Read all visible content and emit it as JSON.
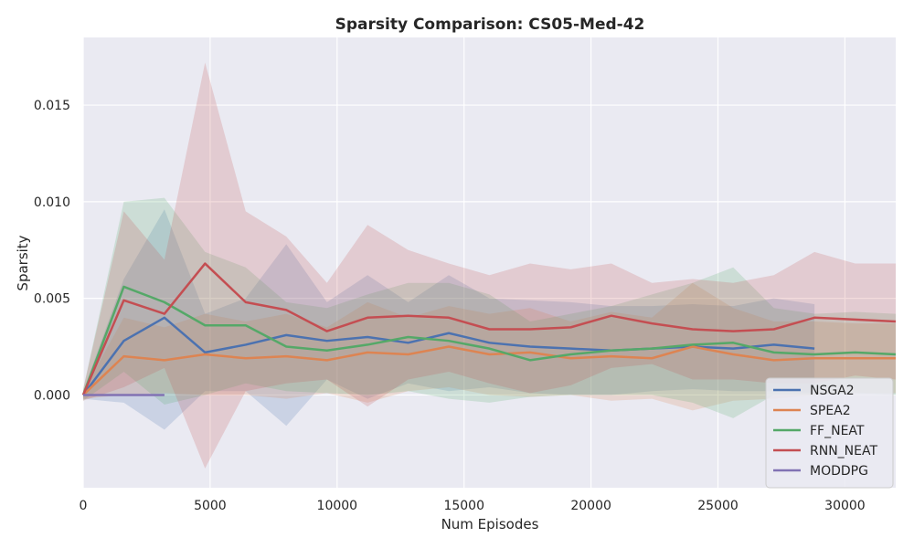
{
  "chart_data": {
    "type": "line",
    "title": "Sparsity Comparison: CS05-Med-42",
    "xlabel": "Num Episodes",
    "ylabel": "Sparsity",
    "xlim": [
      0,
      32000
    ],
    "ylim": [
      -0.0048,
      0.0185
    ],
    "xticks": [
      0,
      5000,
      10000,
      15000,
      20000,
      25000,
      30000
    ],
    "xtick_labels": [
      "0",
      "5000",
      "10000",
      "15000",
      "20000",
      "25000",
      "30000"
    ],
    "yticks": [
      0.0,
      0.005,
      0.01,
      0.015
    ],
    "ytick_labels": [
      "0.000",
      "0.005",
      "0.010",
      "0.015"
    ],
    "grid": true,
    "legend_position": "bottom-right",
    "series": [
      {
        "name": "NSGA2",
        "color": "#4c72b0",
        "x": [
          0,
          1600,
          3200,
          4800,
          6400,
          8000,
          9600,
          11200,
          12800,
          14400,
          16000,
          17600,
          19200,
          20800,
          22400,
          24000,
          25600,
          27200,
          28800
        ],
        "y": [
          0.0,
          0.0028,
          0.004,
          0.0022,
          0.0026,
          0.0031,
          0.0028,
          0.003,
          0.0027,
          0.0032,
          0.0027,
          0.0025,
          0.0024,
          0.0023,
          0.0024,
          0.0025,
          0.0024,
          0.0026,
          0.0024
        ],
        "upper": [
          0.0002,
          0.006,
          0.0096,
          0.0042,
          0.005,
          0.0078,
          0.0048,
          0.0062,
          0.0048,
          0.0062,
          0.005,
          0.0049,
          0.0048,
          0.0046,
          0.0046,
          0.0047,
          0.0046,
          0.005,
          0.0047
        ],
        "lower": [
          -0.0002,
          -0.0004,
          -0.0018,
          0.0002,
          0.0002,
          -0.0016,
          0.0008,
          -0.0002,
          0.0006,
          0.0002,
          0.0004,
          0.0001,
          0.0,
          0.0,
          0.0002,
          0.0003,
          0.0002,
          0.0002,
          0.0001
        ]
      },
      {
        "name": "SPEA2",
        "color": "#dd8452",
        "x": [
          0,
          1600,
          3200,
          4800,
          6400,
          8000,
          9600,
          11200,
          12800,
          14400,
          16000,
          17600,
          19200,
          20800,
          22400,
          24000,
          25600,
          27200,
          28800,
          30400,
          32000
        ],
        "y": [
          0.0,
          0.002,
          0.0018,
          0.0021,
          0.0019,
          0.002,
          0.0018,
          0.0022,
          0.0021,
          0.0025,
          0.0021,
          0.0022,
          0.0019,
          0.002,
          0.0019,
          0.0025,
          0.0021,
          0.0018,
          0.0019,
          0.0019,
          0.0019
        ],
        "upper": [
          0.0002,
          0.004,
          0.0035,
          0.0042,
          0.0038,
          0.0042,
          0.0035,
          0.0048,
          0.004,
          0.0046,
          0.0042,
          0.0045,
          0.0038,
          0.0043,
          0.004,
          0.0058,
          0.0045,
          0.0038,
          0.0038,
          0.0037,
          0.0037
        ],
        "lower": [
          -0.0002,
          0.0,
          0.0001,
          0.0,
          0.0,
          -0.0002,
          0.0001,
          -0.0004,
          0.0002,
          0.0004,
          0.0,
          -0.0001,
          0.0,
          -0.0003,
          -0.0002,
          -0.0008,
          -0.0003,
          -0.0002,
          0.0,
          0.0001,
          0.0001
        ]
      },
      {
        "name": "FF_NEAT",
        "color": "#55a868",
        "x": [
          0,
          1600,
          3200,
          4800,
          6400,
          8000,
          9600,
          11200,
          12800,
          14400,
          16000,
          17600,
          19200,
          20800,
          22400,
          24000,
          25600,
          27200,
          28800,
          30400,
          32000
        ],
        "y": [
          0.0,
          0.0056,
          0.0048,
          0.0036,
          0.0036,
          0.0025,
          0.0023,
          0.0026,
          0.003,
          0.0028,
          0.0024,
          0.0018,
          0.0021,
          0.0023,
          0.0024,
          0.0026,
          0.0027,
          0.0022,
          0.0021,
          0.0022,
          0.0021
        ],
        "upper": [
          0.0003,
          0.01,
          0.0102,
          0.0074,
          0.0066,
          0.0048,
          0.0045,
          0.0052,
          0.0058,
          0.0058,
          0.0052,
          0.0038,
          0.0042,
          0.0046,
          0.0052,
          0.0058,
          0.0066,
          0.0045,
          0.0042,
          0.0043,
          0.0042
        ],
        "lower": [
          -0.0003,
          0.0012,
          -0.0005,
          0.0,
          0.0006,
          0.0002,
          0.0001,
          0.0,
          0.0002,
          -0.0002,
          -0.0004,
          -0.0001,
          0.0,
          0.0,
          0.0,
          -0.0004,
          -0.0012,
          0.0,
          0.0,
          0.0001,
          0.0
        ]
      },
      {
        "name": "RNN_NEAT",
        "color": "#c44e52",
        "x": [
          0,
          1600,
          3200,
          4800,
          6400,
          8000,
          9600,
          11200,
          12800,
          14400,
          16000,
          17600,
          19200,
          20800,
          22400,
          24000,
          25600,
          27200,
          28800,
          30400,
          32000
        ],
        "y": [
          0.0,
          0.0049,
          0.0042,
          0.0068,
          0.0048,
          0.0044,
          0.0033,
          0.004,
          0.0041,
          0.004,
          0.0034,
          0.0034,
          0.0035,
          0.0041,
          0.0037,
          0.0034,
          0.0033,
          0.0034,
          0.004,
          0.0039,
          0.0038
        ],
        "upper": [
          0.0003,
          0.0095,
          0.007,
          0.0172,
          0.0095,
          0.0082,
          0.0058,
          0.0088,
          0.0075,
          0.0068,
          0.0062,
          0.0068,
          0.0065,
          0.0068,
          0.0058,
          0.006,
          0.0058,
          0.0062,
          0.0074,
          0.0068,
          0.0068
        ],
        "lower": [
          -0.0003,
          0.0004,
          0.0014,
          -0.0038,
          0.0002,
          0.0006,
          0.0008,
          -0.0006,
          0.0008,
          0.0012,
          0.0006,
          0.0001,
          0.0005,
          0.0014,
          0.0016,
          0.0008,
          0.0008,
          0.0006,
          0.0006,
          0.001,
          0.0008
        ]
      },
      {
        "name": "MODDPG",
        "color": "#8172b3",
        "x": [
          0,
          1600,
          3200
        ],
        "y": [
          0.0,
          0.0,
          0.0
        ],
        "upper": [
          0.0,
          0.0,
          0.0
        ],
        "lower": [
          0.0,
          0.0,
          0.0
        ]
      }
    ]
  }
}
